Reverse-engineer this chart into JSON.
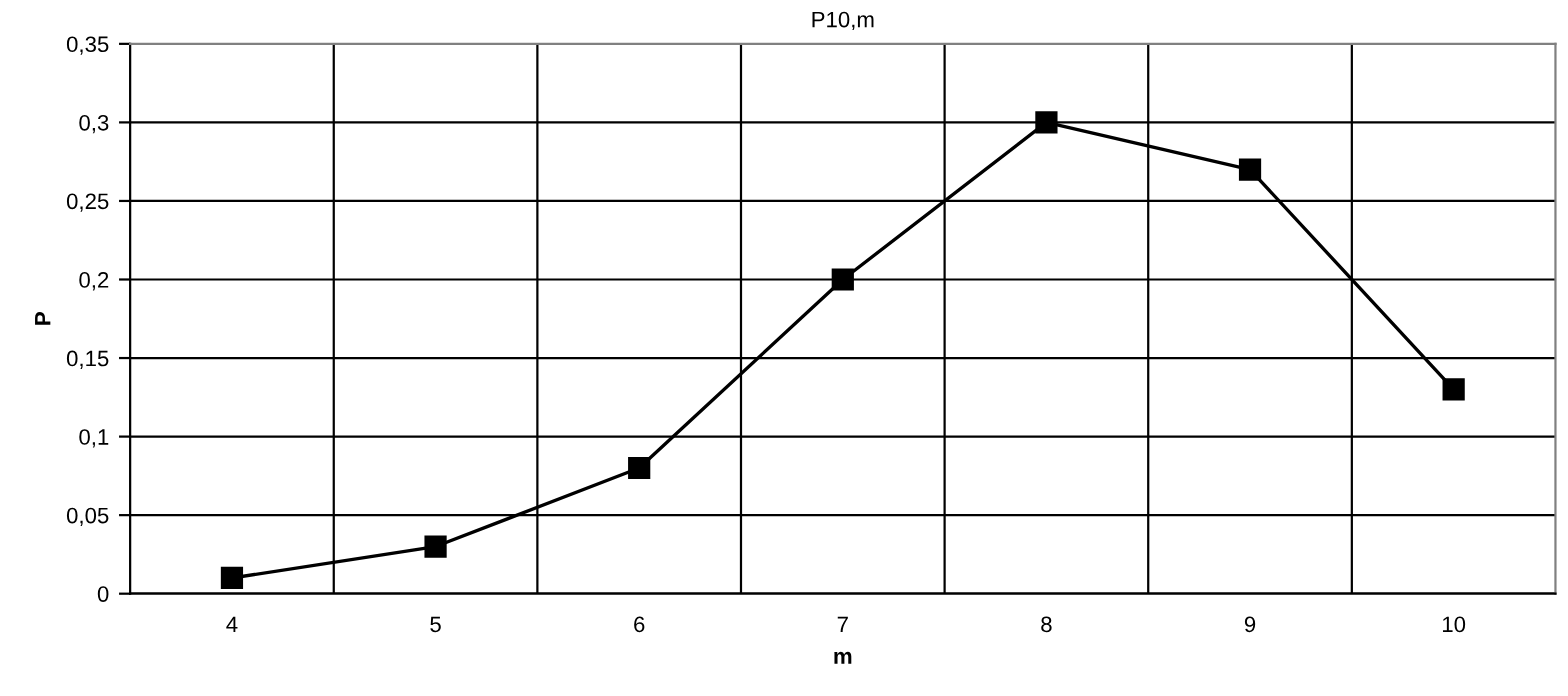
{
  "chart_data": {
    "type": "line",
    "title": "P10,m",
    "xlabel": "m",
    "ylabel": "P",
    "categories": [
      "4",
      "5",
      "6",
      "7",
      "8",
      "9",
      "10"
    ],
    "series": [
      {
        "color": "#000000",
        "values": [
          0.01,
          0.03,
          0.08,
          0.2,
          0.3,
          0.27,
          0.13
        ]
      }
    ],
    "ylim": [
      0,
      0.35
    ],
    "yticks": [
      0,
      {
        "value": 0.05,
        "label": "0,05"
      },
      {
        "value": 0.1,
        "label": "0,1"
      },
      {
        "value": 0.15,
        "label": "0,15"
      },
      {
        "value": 0.2,
        "label": "0,2"
      },
      {
        "value": 0.25,
        "label": "0,25"
      },
      {
        "value": 0.3,
        "label": "0,3"
      },
      {
        "value": 0.35,
        "label": "0,35"
      }
    ],
    "grid": true,
    "marker": "square",
    "line_style": "solid"
  }
}
